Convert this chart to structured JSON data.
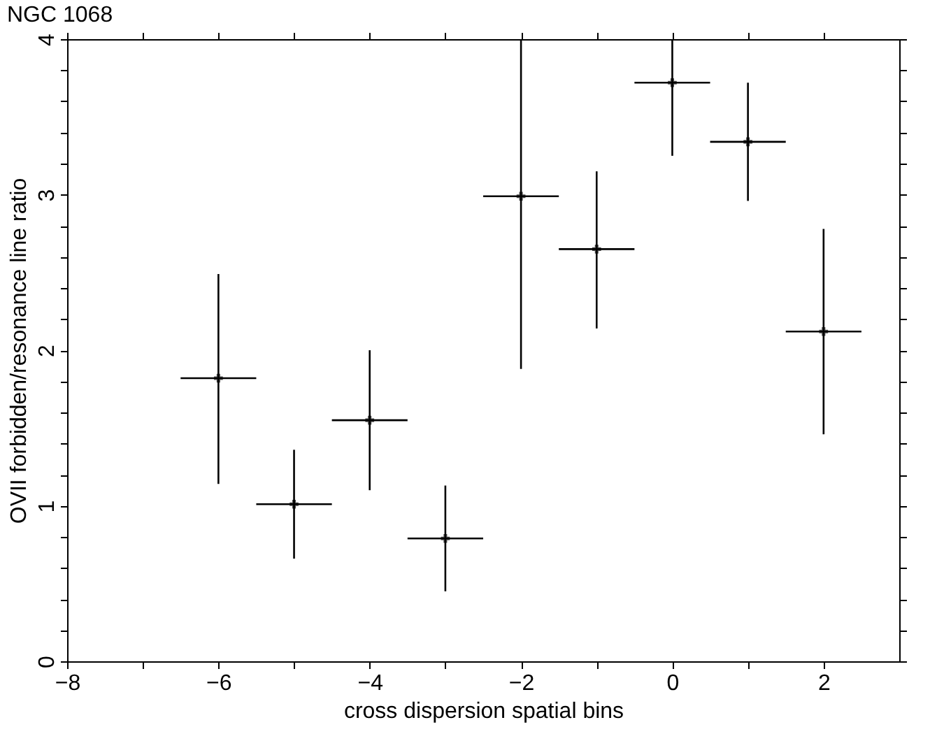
{
  "chart_data": {
    "type": "scatter",
    "title": "NGC 1068",
    "xlabel": "cross dispersion spatial bins",
    "ylabel": "OVII forbidden/resonance line ratio",
    "x": [
      -6,
      -5,
      -4,
      -3,
      -2,
      -1,
      0,
      1,
      2
    ],
    "series": [
      {
        "color": "#000000",
        "values": [
          1.82,
          1.01,
          1.55,
          0.79,
          2.99,
          2.65,
          3.72,
          3.34,
          2.12
        ],
        "errors": [
          [
            1.14,
            2.49
          ],
          [
            0.66,
            1.36
          ],
          [
            1.1,
            2.0
          ],
          [
            0.45,
            1.13
          ],
          [
            1.88,
            4.0
          ],
          [
            2.14,
            3.15
          ],
          [
            3.25,
            4.0
          ],
          [
            2.96,
            3.72
          ],
          [
            1.46,
            2.78
          ]
        ],
        "xerrors": [
          0.5,
          0.5,
          0.5,
          0.5,
          0.5,
          0.5,
          0.5,
          0.5,
          0.5
        ]
      }
    ],
    "marker": "cross",
    "xlim": [
      -8,
      3
    ],
    "ylim": [
      0,
      4
    ],
    "xticks": [
      -8,
      {
        "value": -7,
        "label": null
      },
      -6,
      {
        "value": -5,
        "label": null
      },
      -4,
      {
        "value": -3,
        "label": null
      },
      -2,
      {
        "value": -1,
        "label": null
      },
      0,
      {
        "value": 1,
        "label": null
      },
      2
    ],
    "yticks": [
      0,
      {
        "value": 0.2,
        "label": null
      },
      {
        "value": 0.4,
        "label": null
      },
      {
        "value": 0.6,
        "label": null
      },
      {
        "value": 0.8,
        "label": null
      },
      1,
      {
        "value": 1.2,
        "label": null
      },
      {
        "value": 1.4,
        "label": null
      },
      {
        "value": 1.6,
        "label": null
      },
      {
        "value": 1.8,
        "label": null
      },
      2,
      {
        "value": 2.2,
        "label": null
      },
      {
        "value": 2.4,
        "label": null
      },
      {
        "value": 2.6,
        "label": null
      },
      {
        "value": 2.8,
        "label": null
      },
      3,
      {
        "value": 3.2,
        "label": null
      },
      {
        "value": 3.4,
        "label": null
      },
      {
        "value": 3.6,
        "label": null
      },
      {
        "value": 3.8,
        "label": null
      },
      4
    ],
    "grid": false
  }
}
